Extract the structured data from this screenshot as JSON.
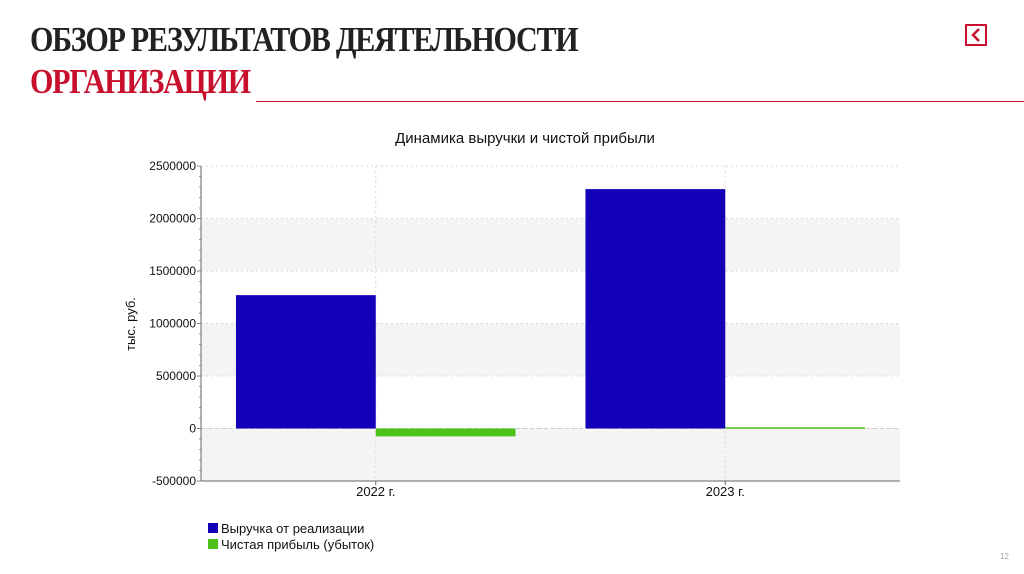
{
  "header": {
    "title_line1": "ОБЗОР РЕЗУЛЬТАТОВ ДЕЯТЕЛЬНОСТИ",
    "title_line2": "ОРГАНИЗАЦИИ",
    "nav_icon": "back-arrow-icon"
  },
  "page_number": "12",
  "colors": {
    "accent": "#c8102e",
    "revenue": "#1400b8",
    "profit": "#4cc21a"
  },
  "chart_data": {
    "type": "bar",
    "title": "Динамика выручки и чистой прибыли",
    "ylabel": "тыс. руб.",
    "xlabel": "",
    "categories": [
      "2022 г.",
      "2023 г."
    ],
    "series": [
      {
        "name": "Выручка от реализации",
        "values": [
          1270000,
          2280000
        ]
      },
      {
        "name": "Чистая прибыль (убыток)",
        "values": [
          -75000,
          12000
        ]
      }
    ],
    "ylim": [
      -500000,
      2500000
    ],
    "yticks": [
      2500000,
      2000000,
      1500000,
      1000000,
      500000,
      0,
      -500000
    ],
    "ytick_labels": [
      "2500000",
      "2000000",
      "1500000",
      "1000000",
      "500000",
      "0",
      "-500000"
    ],
    "grid": true,
    "legend_position": "bottom-left"
  }
}
